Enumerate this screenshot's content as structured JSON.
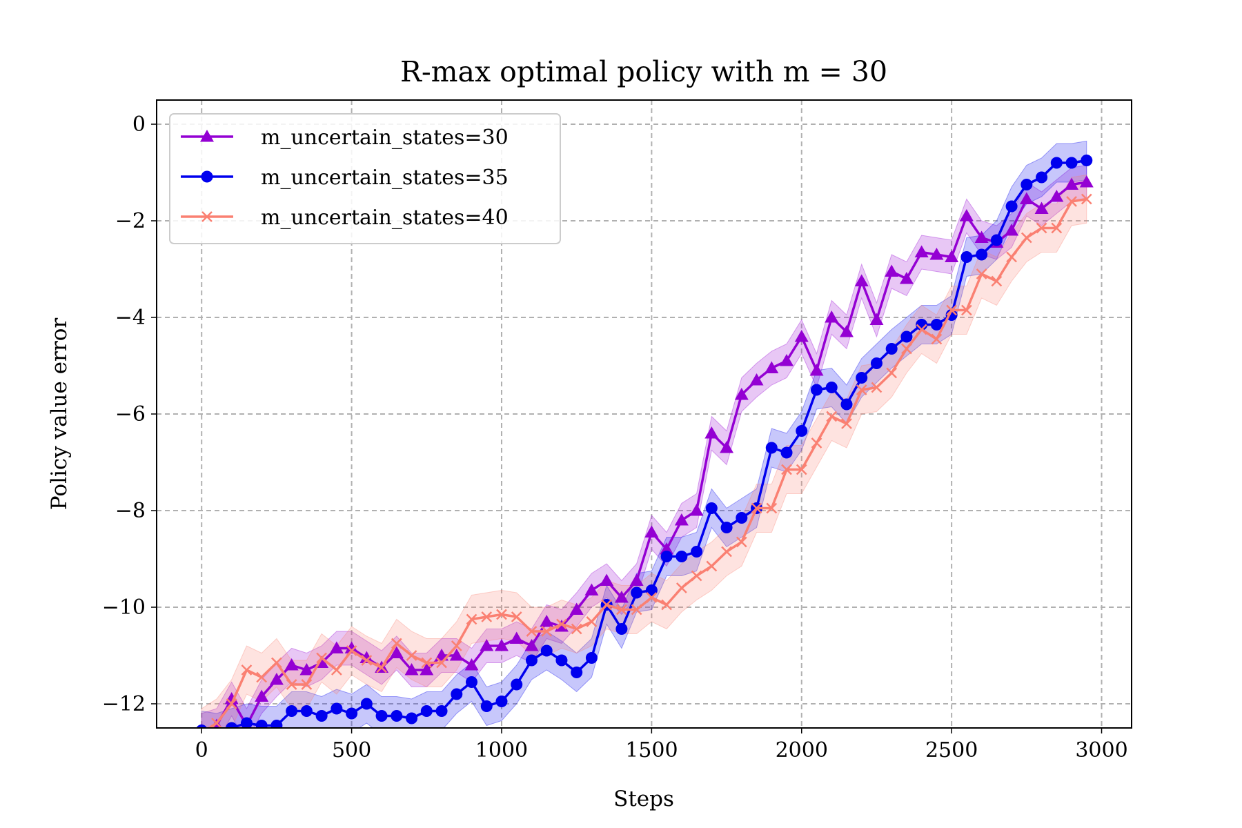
{
  "chart_data": {
    "type": "line",
    "title": "R-max optimal policy with m = 30",
    "xlabel": "Steps",
    "ylabel": "Policy value error",
    "xlim": [
      -150,
      3100
    ],
    "ylim": [
      -12.5,
      0.5
    ],
    "xticks": [
      0,
      500,
      1000,
      1500,
      2000,
      2500,
      3000
    ],
    "xtick_labels": [
      "0",
      "500",
      "1000",
      "1500",
      "2000",
      "2500",
      "3000"
    ],
    "yticks": [
      0,
      -2,
      -4,
      -6,
      -8,
      -10,
      -12
    ],
    "ytick_labels": [
      "0",
      "−2",
      "−4",
      "−6",
      "−8",
      "−10",
      "−12"
    ],
    "grid": true,
    "legend_position": "top-left",
    "series": [
      {
        "name": "m_uncertain_states=30",
        "color": "#9400d3",
        "marker": "triangle",
        "band": 0.35,
        "x": [
          0,
          50,
          100,
          150,
          200,
          250,
          300,
          350,
          400,
          450,
          500,
          550,
          600,
          650,
          700,
          750,
          800,
          850,
          900,
          950,
          1000,
          1050,
          1100,
          1150,
          1200,
          1250,
          1300,
          1350,
          1400,
          1450,
          1500,
          1550,
          1600,
          1650,
          1700,
          1750,
          1800,
          1850,
          1900,
          1950,
          2000,
          2050,
          2100,
          2150,
          2200,
          2250,
          2300,
          2350,
          2400,
          2450,
          2500,
          2550,
          2600,
          2650,
          2700,
          2750,
          2800,
          2850,
          2900,
          2950
        ],
        "y": [
          -12.55,
          -12.45,
          -11.9,
          -12.45,
          -11.85,
          -11.5,
          -11.2,
          -11.3,
          -11.15,
          -10.85,
          -10.85,
          -11.05,
          -11.25,
          -10.95,
          -11.3,
          -11.3,
          -11.0,
          -11.0,
          -11.2,
          -10.8,
          -10.8,
          -10.65,
          -10.8,
          -10.3,
          -10.4,
          -10.05,
          -9.65,
          -9.45,
          -9.8,
          -9.45,
          -8.45,
          -8.8,
          -8.2,
          -8.0,
          -6.4,
          -6.7,
          -5.6,
          -5.3,
          -5.05,
          -4.9,
          -4.4,
          -5.1,
          -4.0,
          -4.3,
          -3.25,
          -4.05,
          -3.05,
          -3.2,
          -2.65,
          -2.7,
          -2.75,
          -1.9,
          -2.35,
          -2.45,
          -2.2,
          -1.55,
          -1.75,
          -1.5,
          -1.25,
          -1.2
        ]
      },
      {
        "name": "m_uncertain_states=35",
        "color": "#0000ee",
        "marker": "circle",
        "band": 0.4,
        "x": [
          0,
          50,
          100,
          150,
          200,
          250,
          300,
          350,
          400,
          450,
          500,
          550,
          600,
          650,
          700,
          750,
          800,
          850,
          900,
          950,
          1000,
          1050,
          1100,
          1150,
          1200,
          1250,
          1300,
          1350,
          1400,
          1450,
          1500,
          1550,
          1600,
          1650,
          1700,
          1750,
          1800,
          1850,
          1900,
          1950,
          2000,
          2050,
          2100,
          2150,
          2200,
          2250,
          2300,
          2350,
          2400,
          2450,
          2500,
          2550,
          2600,
          2650,
          2700,
          2750,
          2800,
          2850,
          2900,
          2950
        ],
        "y": [
          -12.55,
          -12.6,
          -12.5,
          -12.4,
          -12.45,
          -12.45,
          -12.15,
          -12.15,
          -12.25,
          -12.1,
          -12.2,
          -12.0,
          -12.25,
          -12.25,
          -12.3,
          -12.15,
          -12.15,
          -11.8,
          -11.55,
          -12.05,
          -11.95,
          -11.6,
          -11.1,
          -10.9,
          -11.1,
          -11.35,
          -11.05,
          -9.95,
          -10.45,
          -9.7,
          -9.65,
          -8.95,
          -8.95,
          -8.85,
          -7.95,
          -8.35,
          -8.15,
          -7.95,
          -6.7,
          -6.8,
          -6.35,
          -5.5,
          -5.45,
          -5.8,
          -5.25,
          -4.95,
          -4.65,
          -4.4,
          -4.15,
          -4.15,
          -3.95,
          -2.75,
          -2.7,
          -2.4,
          -1.7,
          -1.25,
          -1.1,
          -0.8,
          -0.8,
          -0.75
        ]
      },
      {
        "name": "m_uncertain_states=40",
        "color": "#fa8072",
        "marker": "x",
        "band": 0.5,
        "x": [
          0,
          50,
          100,
          150,
          200,
          250,
          300,
          350,
          400,
          450,
          500,
          550,
          600,
          650,
          700,
          750,
          800,
          850,
          900,
          950,
          1000,
          1050,
          1100,
          1150,
          1200,
          1250,
          1300,
          1350,
          1400,
          1450,
          1500,
          1550,
          1600,
          1650,
          1700,
          1750,
          1800,
          1850,
          1900,
          1950,
          2000,
          2050,
          2100,
          2150,
          2200,
          2250,
          2300,
          2350,
          2400,
          2450,
          2500,
          2550,
          2600,
          2650,
          2700,
          2750,
          2800,
          2850,
          2900,
          2950
        ],
        "y": [
          -12.6,
          -12.4,
          -12.0,
          -11.3,
          -11.45,
          -11.15,
          -11.6,
          -11.6,
          -11.05,
          -11.3,
          -10.9,
          -11.1,
          -11.25,
          -10.75,
          -11.0,
          -11.15,
          -11.15,
          -10.8,
          -10.25,
          -10.2,
          -10.15,
          -10.2,
          -10.5,
          -10.5,
          -10.35,
          -10.45,
          -10.3,
          -9.95,
          -10.05,
          -10.05,
          -9.8,
          -9.95,
          -9.6,
          -9.35,
          -9.15,
          -8.85,
          -8.65,
          -7.95,
          -7.95,
          -7.15,
          -7.15,
          -6.6,
          -6.05,
          -6.2,
          -5.5,
          -5.45,
          -5.15,
          -4.65,
          -4.25,
          -4.45,
          -3.85,
          -3.85,
          -3.1,
          -3.25,
          -2.75,
          -2.35,
          -2.15,
          -2.15,
          -1.6,
          -1.55
        ]
      }
    ]
  }
}
